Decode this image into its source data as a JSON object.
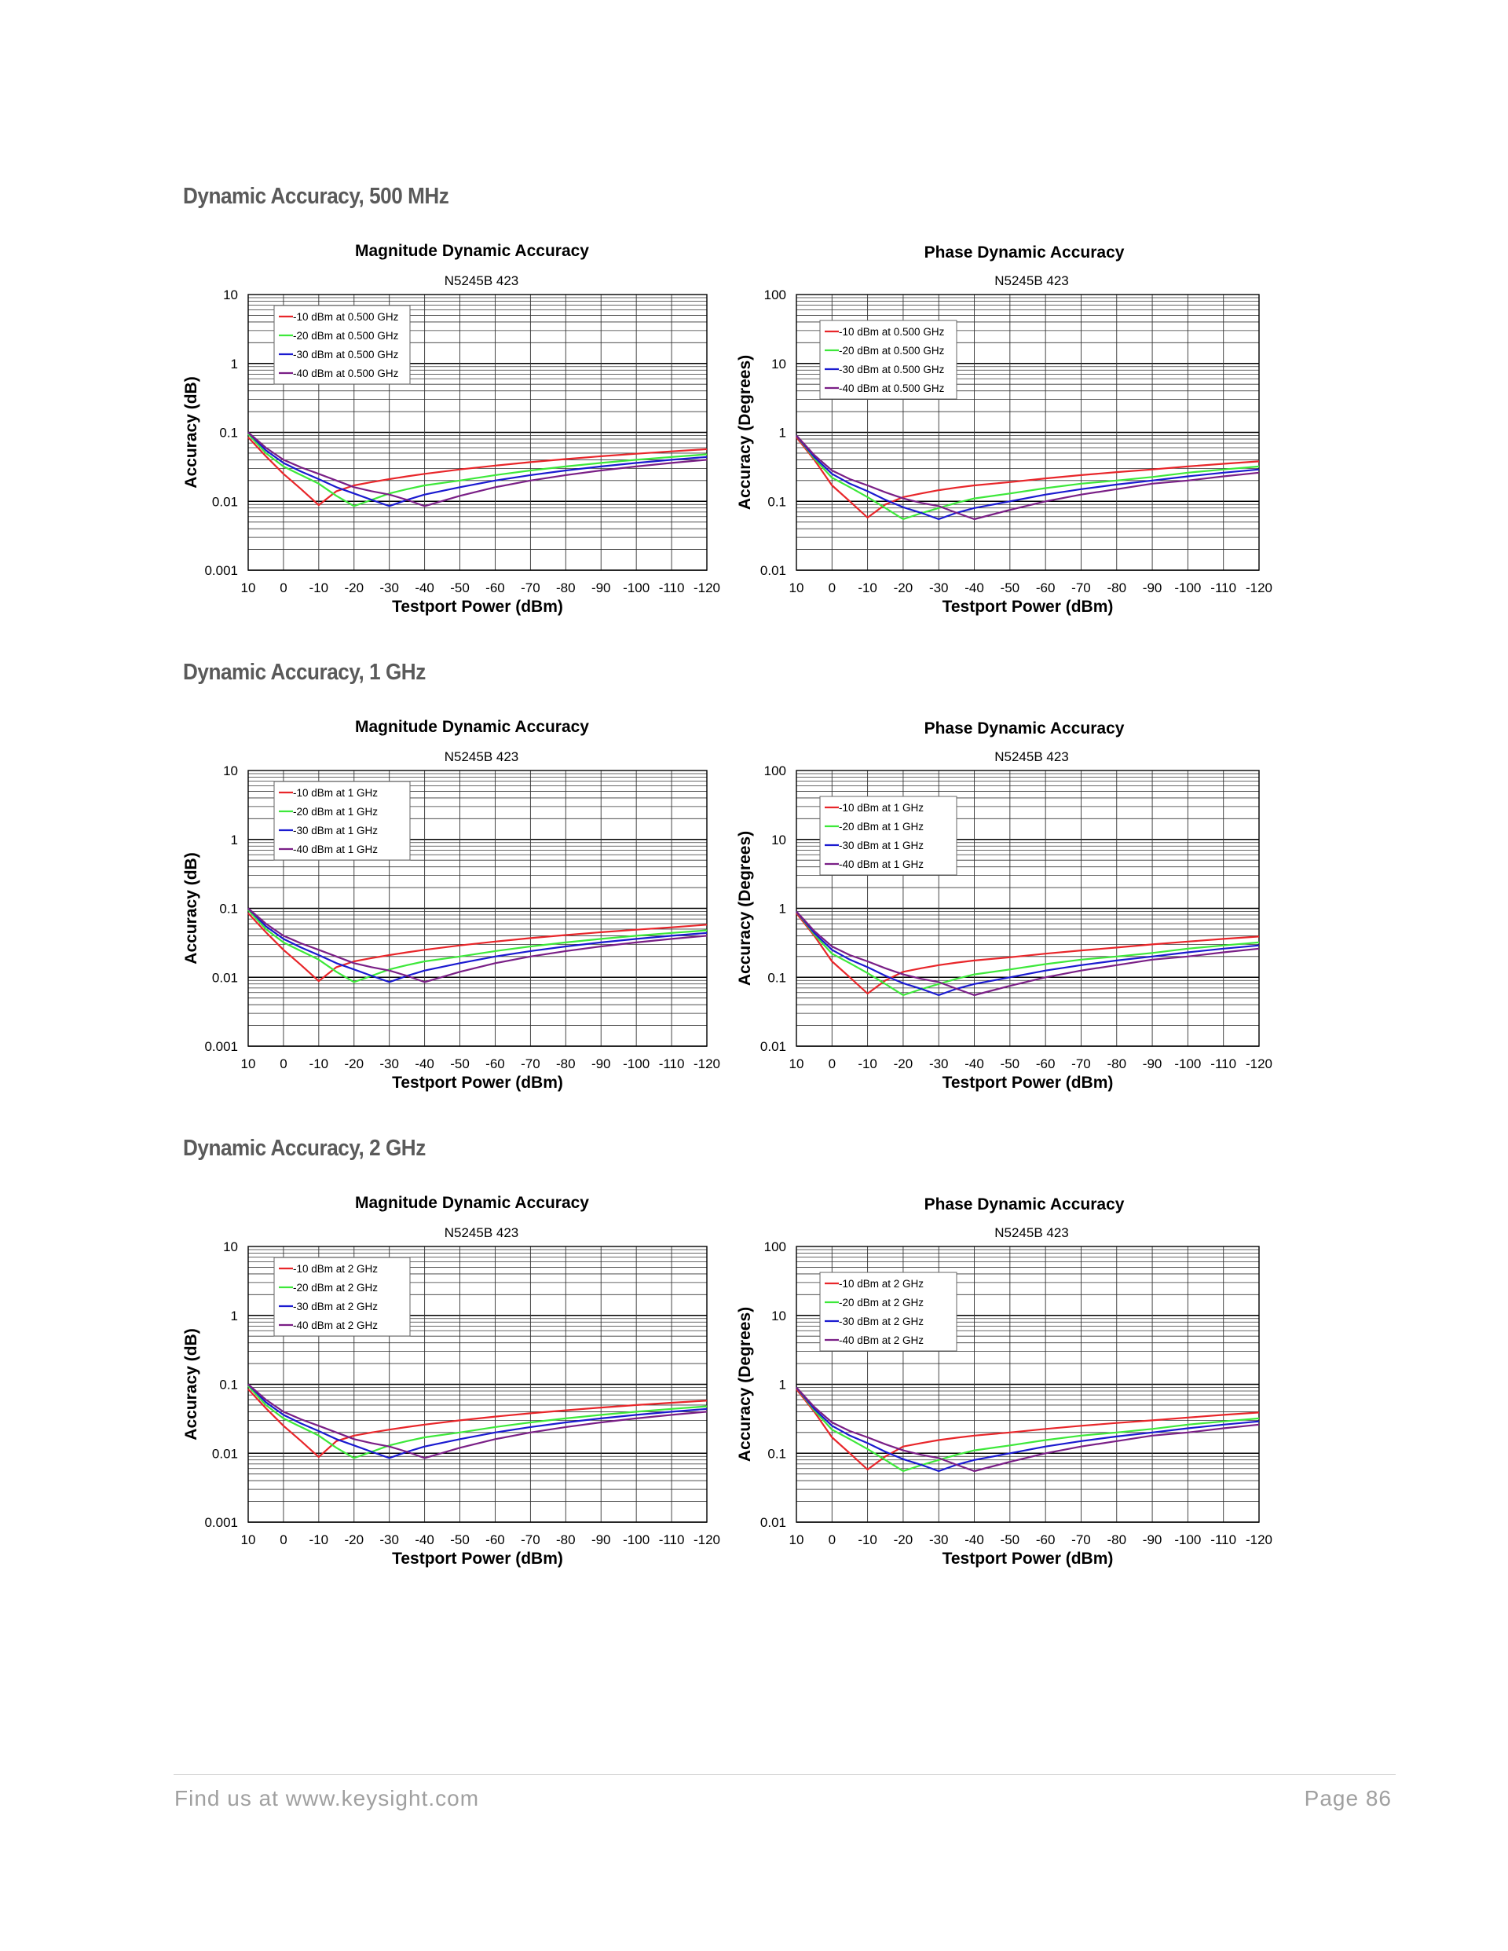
{
  "sections": [
    {
      "heading": "Dynamic Accuracy, 500 MHz"
    },
    {
      "heading": "Dynamic Accuracy, 1 GHz"
    },
    {
      "heading": "Dynamic Accuracy, 2 GHz"
    }
  ],
  "series_colors": [
    "#e8262a",
    "#3de83a",
    "#1a1ad0",
    "#7a1f86"
  ],
  "chart_data": [
    {
      "type": "line",
      "section": 0,
      "kind": "magnitude",
      "title": "Magnitude Dynamic Accuracy",
      "subtitle": "N5245B 423",
      "xlabel": "Testport Power (dBm)",
      "ylabel": "Accuracy (dB)",
      "yscale": "log",
      "ylim": [
        0.001,
        10
      ],
      "xlim": [
        10,
        -120
      ],
      "grid": true,
      "legend": "top-left",
      "yticks": [
        "0.001",
        "0.01",
        "0.1",
        "1",
        "10"
      ],
      "xticks": [
        "10",
        "0",
        "-10",
        "-20",
        "-30",
        "-40",
        "-50",
        "-60",
        "-70",
        "-80",
        "-90",
        "-100",
        "-110",
        "-120"
      ],
      "x": [
        10,
        5,
        0,
        -5,
        -10,
        -15,
        -20,
        -25,
        -30,
        -35,
        -40,
        -50,
        -60,
        -70,
        -80,
        -90,
        -100,
        -110,
        -120
      ],
      "series": [
        {
          "name": "-10 dBm at 0.500 GHz",
          "values": [
            0.085,
            0.045,
            0.025,
            0.015,
            0.0088,
            0.014,
            0.017,
            0.019,
            0.021,
            0.023,
            0.025,
            0.029,
            0.033,
            0.037,
            0.041,
            0.045,
            0.049,
            0.053,
            0.057
          ]
        },
        {
          "name": "-20 dBm at 0.500 GHz",
          "values": [
            0.095,
            0.05,
            0.032,
            0.024,
            0.018,
            0.012,
            0.0085,
            0.0105,
            0.013,
            0.015,
            0.017,
            0.02,
            0.024,
            0.028,
            0.032,
            0.036,
            0.04,
            0.044,
            0.048
          ]
        },
        {
          "name": "-30 dBm at 0.500 GHz",
          "values": [
            0.1,
            0.055,
            0.036,
            0.027,
            0.021,
            0.016,
            0.013,
            0.0105,
            0.0085,
            0.0105,
            0.0125,
            0.016,
            0.02,
            0.024,
            0.028,
            0.032,
            0.036,
            0.04,
            0.044
          ]
        },
        {
          "name": "-40 dBm at 0.500 GHz",
          "values": [
            0.1,
            0.06,
            0.04,
            0.031,
            0.025,
            0.02,
            0.016,
            0.014,
            0.0125,
            0.0105,
            0.0085,
            0.012,
            0.016,
            0.02,
            0.024,
            0.028,
            0.032,
            0.036,
            0.04
          ]
        }
      ]
    },
    {
      "type": "line",
      "section": 0,
      "kind": "phase",
      "title": "Phase Dynamic Accuracy",
      "subtitle": "N5245B 423",
      "xlabel": "Testport Power (dBm)",
      "ylabel": "Accuracy (Degrees)",
      "yscale": "log",
      "ylim": [
        0.01,
        100
      ],
      "xlim": [
        10,
        -120
      ],
      "grid": true,
      "legend": "top-left",
      "yticks": [
        "0.01",
        "0.1",
        "1",
        "10",
        "100"
      ],
      "xticks": [
        "10",
        "0",
        "-10",
        "-20",
        "-30",
        "-40",
        "-50",
        "-60",
        "-70",
        "-80",
        "-90",
        "-100",
        "-110",
        "-120"
      ],
      "x": [
        10,
        5,
        0,
        -5,
        -10,
        -15,
        -20,
        -25,
        -30,
        -35,
        -40,
        -50,
        -60,
        -70,
        -80,
        -90,
        -100,
        -110,
        -120
      ],
      "series": [
        {
          "name": "-10 dBm at 0.500 GHz",
          "values": [
            0.85,
            0.4,
            0.17,
            0.1,
            0.058,
            0.09,
            0.115,
            0.13,
            0.145,
            0.158,
            0.17,
            0.19,
            0.215,
            0.24,
            0.265,
            0.29,
            0.32,
            0.35,
            0.38
          ]
        },
        {
          "name": "-20 dBm at 0.500 GHz",
          "values": [
            0.9,
            0.42,
            0.22,
            0.16,
            0.115,
            0.08,
            0.055,
            0.067,
            0.08,
            0.095,
            0.11,
            0.13,
            0.155,
            0.18,
            0.2,
            0.225,
            0.26,
            0.29,
            0.32
          ]
        },
        {
          "name": "-30 dBm at 0.500 GHz",
          "values": [
            0.9,
            0.44,
            0.25,
            0.18,
            0.14,
            0.105,
            0.082,
            0.068,
            0.055,
            0.068,
            0.08,
            0.1,
            0.125,
            0.15,
            0.175,
            0.2,
            0.23,
            0.26,
            0.29
          ]
        },
        {
          "name": "-40 dBm at 0.500 GHz",
          "values": [
            0.9,
            0.47,
            0.28,
            0.21,
            0.17,
            0.135,
            0.11,
            0.095,
            0.085,
            0.068,
            0.055,
            0.075,
            0.1,
            0.125,
            0.15,
            0.18,
            0.2,
            0.23,
            0.26
          ]
        }
      ]
    },
    {
      "type": "line",
      "section": 1,
      "kind": "magnitude",
      "title": "Magnitude Dynamic Accuracy",
      "subtitle": "N5245B 423",
      "xlabel": "Testport Power (dBm)",
      "ylabel": "Accuracy (dB)",
      "yscale": "log",
      "ylim": [
        0.001,
        10
      ],
      "xlim": [
        10,
        -120
      ],
      "grid": true,
      "legend": "top-left",
      "yticks": [
        "0.001",
        "0.01",
        "0.1",
        "1",
        "10"
      ],
      "xticks": [
        "10",
        "0",
        "-10",
        "-20",
        "-30",
        "-40",
        "-50",
        "-60",
        "-70",
        "-80",
        "-90",
        "-100",
        "-110",
        "-120"
      ],
      "x": [
        10,
        5,
        0,
        -5,
        -10,
        -15,
        -20,
        -25,
        -30,
        -35,
        -40,
        -50,
        -60,
        -70,
        -80,
        -90,
        -100,
        -110,
        -120
      ],
      "series": [
        {
          "name": "-10 dBm at 1 GHz",
          "values": [
            0.085,
            0.045,
            0.025,
            0.015,
            0.0088,
            0.014,
            0.017,
            0.019,
            0.021,
            0.023,
            0.025,
            0.029,
            0.033,
            0.037,
            0.041,
            0.045,
            0.049,
            0.053,
            0.058
          ]
        },
        {
          "name": "-20 dBm at 1 GHz",
          "values": [
            0.095,
            0.05,
            0.032,
            0.024,
            0.018,
            0.012,
            0.0085,
            0.0105,
            0.013,
            0.015,
            0.017,
            0.02,
            0.024,
            0.028,
            0.032,
            0.036,
            0.04,
            0.044,
            0.048
          ]
        },
        {
          "name": "-30 dBm at 1 GHz",
          "values": [
            0.1,
            0.055,
            0.036,
            0.027,
            0.021,
            0.016,
            0.013,
            0.0105,
            0.0085,
            0.0105,
            0.0125,
            0.016,
            0.02,
            0.024,
            0.028,
            0.032,
            0.036,
            0.04,
            0.044
          ]
        },
        {
          "name": "-40 dBm at 1 GHz",
          "values": [
            0.1,
            0.06,
            0.04,
            0.031,
            0.025,
            0.02,
            0.016,
            0.014,
            0.0125,
            0.0105,
            0.0085,
            0.012,
            0.016,
            0.02,
            0.024,
            0.028,
            0.032,
            0.036,
            0.04
          ]
        }
      ]
    },
    {
      "type": "line",
      "section": 1,
      "kind": "phase",
      "title": "Phase Dynamic Accuracy",
      "subtitle": "N5245B 423",
      "xlabel": "Testport Power (dBm)",
      "ylabel": "Accuracy (Degrees)",
      "yscale": "log",
      "ylim": [
        0.01,
        100
      ],
      "xlim": [
        10,
        -120
      ],
      "grid": true,
      "legend": "top-left",
      "yticks": [
        "0.01",
        "0.1",
        "1",
        "10",
        "100"
      ],
      "xticks": [
        "10",
        "0",
        "-10",
        "-20",
        "-30",
        "-40",
        "-50",
        "-60",
        "-70",
        "-80",
        "-90",
        "-100",
        "-110",
        "-120"
      ],
      "x": [
        10,
        5,
        0,
        -5,
        -10,
        -15,
        -20,
        -25,
        -30,
        -35,
        -40,
        -50,
        -60,
        -70,
        -80,
        -90,
        -100,
        -110,
        -120
      ],
      "series": [
        {
          "name": "-10 dBm at 1 GHz",
          "values": [
            0.85,
            0.4,
            0.17,
            0.1,
            0.058,
            0.09,
            0.12,
            0.135,
            0.15,
            0.163,
            0.175,
            0.195,
            0.22,
            0.245,
            0.27,
            0.3,
            0.33,
            0.36,
            0.39
          ]
        },
        {
          "name": "-20 dBm at 1 GHz",
          "values": [
            0.9,
            0.42,
            0.22,
            0.16,
            0.115,
            0.08,
            0.055,
            0.067,
            0.08,
            0.095,
            0.11,
            0.13,
            0.155,
            0.18,
            0.2,
            0.225,
            0.26,
            0.29,
            0.32
          ]
        },
        {
          "name": "-30 dBm at 1 GHz",
          "values": [
            0.9,
            0.44,
            0.25,
            0.18,
            0.14,
            0.105,
            0.082,
            0.068,
            0.055,
            0.068,
            0.08,
            0.1,
            0.125,
            0.15,
            0.175,
            0.2,
            0.23,
            0.26,
            0.29
          ]
        },
        {
          "name": "-40 dBm at 1 GHz",
          "values": [
            0.9,
            0.47,
            0.28,
            0.21,
            0.17,
            0.135,
            0.11,
            0.095,
            0.085,
            0.068,
            0.055,
            0.075,
            0.1,
            0.125,
            0.15,
            0.18,
            0.2,
            0.23,
            0.26
          ]
        }
      ]
    },
    {
      "type": "line",
      "section": 2,
      "kind": "magnitude",
      "title": "Magnitude Dynamic Accuracy",
      "subtitle": "N5245B 423",
      "xlabel": "Testport Power (dBm)",
      "ylabel": "Accuracy (dB)",
      "yscale": "log",
      "ylim": [
        0.001,
        10
      ],
      "xlim": [
        10,
        -120
      ],
      "grid": true,
      "legend": "top-left",
      "yticks": [
        "0.001",
        "0.01",
        "0.1",
        "1",
        "10"
      ],
      "xticks": [
        "10",
        "0",
        "-10",
        "-20",
        "-30",
        "-40",
        "-50",
        "-60",
        "-70",
        "-80",
        "-90",
        "-100",
        "-110",
        "-120"
      ],
      "x": [
        10,
        5,
        0,
        -5,
        -10,
        -15,
        -20,
        -25,
        -30,
        -35,
        -40,
        -50,
        -60,
        -70,
        -80,
        -90,
        -100,
        -110,
        -120
      ],
      "series": [
        {
          "name": "-10 dBm at 2 GHz",
          "values": [
            0.085,
            0.045,
            0.025,
            0.015,
            0.0088,
            0.015,
            0.018,
            0.02,
            0.022,
            0.024,
            0.026,
            0.03,
            0.034,
            0.038,
            0.042,
            0.046,
            0.05,
            0.054,
            0.058
          ]
        },
        {
          "name": "-20 dBm at 2 GHz",
          "values": [
            0.095,
            0.05,
            0.032,
            0.024,
            0.018,
            0.012,
            0.0085,
            0.0105,
            0.013,
            0.015,
            0.017,
            0.02,
            0.024,
            0.028,
            0.032,
            0.036,
            0.04,
            0.044,
            0.048
          ]
        },
        {
          "name": "-30 dBm at 2 GHz",
          "values": [
            0.1,
            0.055,
            0.036,
            0.027,
            0.021,
            0.016,
            0.013,
            0.0105,
            0.0085,
            0.0105,
            0.0125,
            0.016,
            0.02,
            0.024,
            0.028,
            0.032,
            0.036,
            0.04,
            0.044
          ]
        },
        {
          "name": "-40 dBm at 2 GHz",
          "values": [
            0.1,
            0.06,
            0.04,
            0.031,
            0.025,
            0.02,
            0.016,
            0.014,
            0.0125,
            0.0105,
            0.0085,
            0.012,
            0.016,
            0.02,
            0.024,
            0.028,
            0.032,
            0.036,
            0.04
          ]
        }
      ]
    },
    {
      "type": "line",
      "section": 2,
      "kind": "phase",
      "title": "Phase Dynamic Accuracy",
      "subtitle": "N5245B 423",
      "xlabel": "Testport Power (dBm)",
      "ylabel": "Accuracy (Degrees)",
      "yscale": "log",
      "ylim": [
        0.01,
        100
      ],
      "xlim": [
        10,
        -120
      ],
      "grid": true,
      "legend": "top-left",
      "yticks": [
        "0.01",
        "0.1",
        "1",
        "10",
        "100"
      ],
      "xticks": [
        "10",
        "0",
        "-10",
        "-20",
        "-30",
        "-40",
        "-50",
        "-60",
        "-70",
        "-80",
        "-90",
        "-100",
        "-110",
        "-120"
      ],
      "x": [
        10,
        5,
        0,
        -5,
        -10,
        -15,
        -20,
        -25,
        -30,
        -35,
        -40,
        -50,
        -60,
        -70,
        -80,
        -90,
        -100,
        -110,
        -120
      ],
      "series": [
        {
          "name": "-10 dBm at 2 GHz",
          "values": [
            0.85,
            0.4,
            0.17,
            0.1,
            0.058,
            0.09,
            0.125,
            0.14,
            0.155,
            0.168,
            0.18,
            0.2,
            0.225,
            0.25,
            0.275,
            0.3,
            0.33,
            0.36,
            0.39
          ]
        },
        {
          "name": "-20 dBm at 2 GHz",
          "values": [
            0.9,
            0.42,
            0.22,
            0.16,
            0.115,
            0.08,
            0.055,
            0.067,
            0.08,
            0.095,
            0.11,
            0.13,
            0.155,
            0.18,
            0.2,
            0.225,
            0.26,
            0.29,
            0.32
          ]
        },
        {
          "name": "-30 dBm at 2 GHz",
          "values": [
            0.9,
            0.44,
            0.25,
            0.18,
            0.14,
            0.105,
            0.082,
            0.068,
            0.055,
            0.068,
            0.08,
            0.1,
            0.125,
            0.15,
            0.175,
            0.2,
            0.23,
            0.26,
            0.29
          ]
        },
        {
          "name": "-40 dBm at 2 GHz",
          "values": [
            0.9,
            0.47,
            0.28,
            0.21,
            0.17,
            0.135,
            0.11,
            0.095,
            0.085,
            0.068,
            0.055,
            0.075,
            0.1,
            0.125,
            0.15,
            0.18,
            0.2,
            0.23,
            0.26
          ]
        }
      ]
    }
  ],
  "footer": {
    "left": "Find us at www.keysight.com",
    "right": "Page 86"
  }
}
